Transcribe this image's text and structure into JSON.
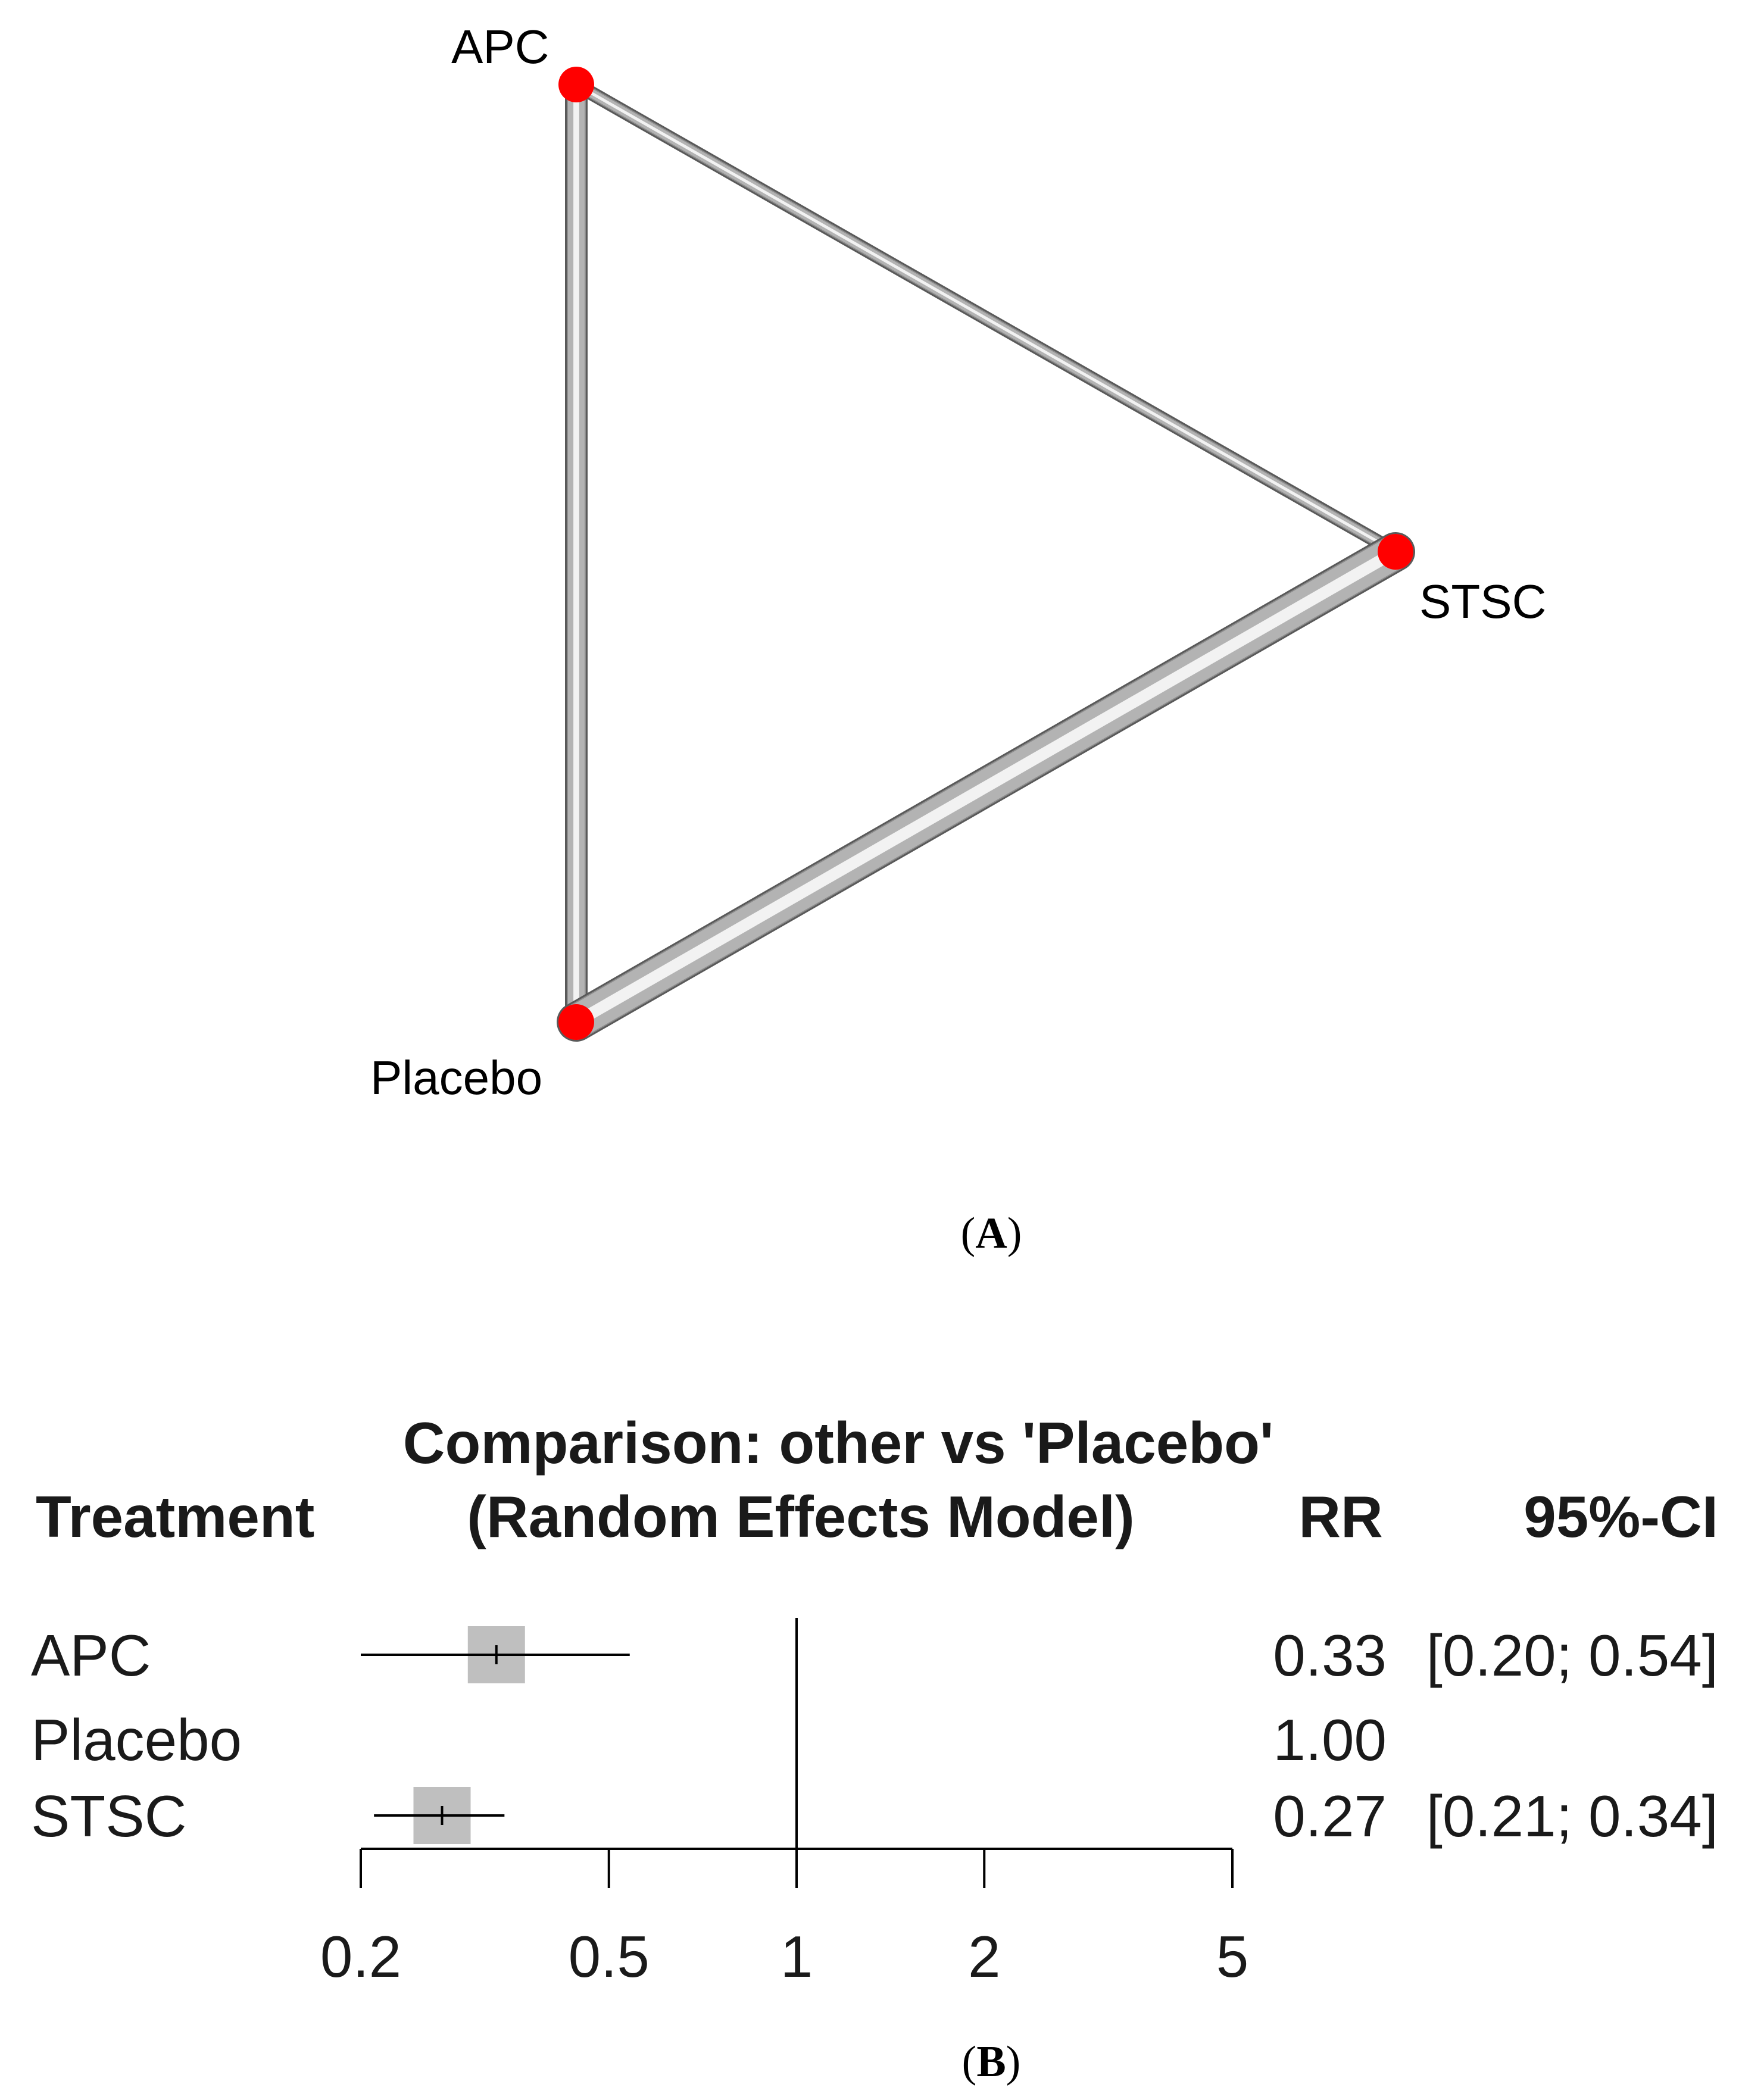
{
  "panel_a": {
    "caption_open": "(",
    "caption_letter": "A",
    "caption_close": ")"
  },
  "panel_b": {
    "caption_open": "(",
    "caption_letter": "B",
    "caption_close": ")"
  },
  "chart_data": [
    {
      "type": "network",
      "nodes": [
        {
          "id": "APC",
          "label": "APC"
        },
        {
          "id": "STSC",
          "label": "STSC"
        },
        {
          "id": "Placebo",
          "label": "Placebo"
        }
      ],
      "edges": [
        {
          "from": "APC",
          "to": "STSC",
          "weight": 1
        },
        {
          "from": "APC",
          "to": "Placebo",
          "weight": 2
        },
        {
          "from": "Placebo",
          "to": "STSC",
          "weight": 4
        }
      ],
      "colors": {
        "node": "#ff0000",
        "edge": "#b3b3b3",
        "edge_shadow": "#595959"
      }
    },
    {
      "type": "forest",
      "title_line1": "Comparison: other vs 'Placebo'",
      "title_line2": "(Random Effects Model)",
      "col_treatment": "Treatment",
      "col_rr": "RR",
      "col_ci": "95%-CI",
      "scale": "log",
      "xlim": [
        0.2,
        5
      ],
      "reference": 1,
      "ticks": [
        {
          "value": 0.2,
          "label": "0.2"
        },
        {
          "value": 0.5,
          "label": "0.5"
        },
        {
          "value": 1,
          "label": "1"
        },
        {
          "value": 2,
          "label": "2"
        },
        {
          "value": 5,
          "label": "5"
        }
      ],
      "rows": [
        {
          "treatment": "APC",
          "rr": 0.33,
          "lower": 0.2,
          "upper": 0.54,
          "rr_text": "0.33",
          "ci_text": "[0.20; 0.54]",
          "weight": 1.0
        },
        {
          "treatment": "Placebo",
          "rr": 1.0,
          "lower": null,
          "upper": null,
          "rr_text": "1.00",
          "ci_text": "",
          "weight": 0
        },
        {
          "treatment": "STSC",
          "rr": 0.27,
          "lower": 0.21,
          "upper": 0.34,
          "rr_text": "0.27",
          "ci_text": "[0.21; 0.34]",
          "weight": 1.0
        }
      ],
      "colors": {
        "box": "#bfbfbf",
        "line": "#000000"
      }
    }
  ]
}
